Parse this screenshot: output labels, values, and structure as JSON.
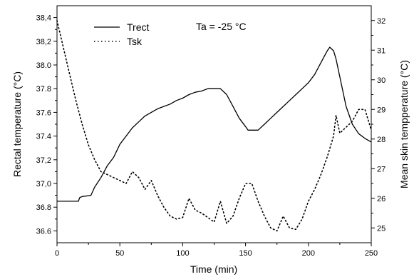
{
  "chart_data": {
    "type": "line",
    "annotation": "Ta = -25 °C",
    "xlabel": "Time (min)",
    "ylabel_left": "Rectal temperature (°C)",
    "ylabel_right": "Mean skin tempperature (°C)",
    "xlim": [
      0,
      250
    ],
    "ylim_left": [
      36.5,
      38.5
    ],
    "ylim_right": [
      24.5,
      32.5
    ],
    "x_ticks": [
      "0",
      "50",
      "100",
      "150",
      "200",
      "250"
    ],
    "y_left_ticks": [
      "36.6",
      "36.8",
      "37,0",
      "37,2",
      "37.4",
      "37.6",
      "37.8",
      "38.0",
      "38,2",
      "38,4"
    ],
    "y_right_ticks": [
      "25",
      "26",
      "27",
      "28",
      "29",
      "30",
      "31",
      "32"
    ],
    "legend_position": "top-left",
    "grid": false,
    "series": [
      {
        "name": "Trect",
        "axis": "left",
        "style": "solid",
        "color": "#000000",
        "x": [
          0,
          17,
          18,
          20,
          27,
          30,
          35,
          40,
          45,
          50,
          55,
          60,
          65,
          70,
          75,
          80,
          85,
          90,
          95,
          100,
          105,
          110,
          115,
          120,
          125,
          130,
          135,
          140,
          145,
          150,
          152,
          155,
          160,
          165,
          170,
          175,
          180,
          185,
          190,
          195,
          200,
          205,
          210,
          215,
          217,
          220,
          222,
          225,
          230,
          235,
          240,
          245,
          250
        ],
        "y": [
          36.85,
          36.85,
          36.88,
          36.89,
          36.9,
          36.97,
          37.05,
          37.15,
          37.22,
          37.33,
          37.4,
          37.47,
          37.52,
          37.57,
          37.6,
          37.63,
          37.65,
          37.67,
          37.7,
          37.72,
          37.75,
          37.77,
          37.78,
          37.8,
          37.8,
          37.8,
          37.75,
          37.65,
          37.55,
          37.48,
          37.45,
          37.45,
          37.45,
          37.5,
          37.55,
          37.6,
          37.65,
          37.7,
          37.75,
          37.8,
          37.85,
          37.92,
          38.02,
          38.12,
          38.15,
          38.12,
          38.05,
          37.9,
          37.65,
          37.5,
          37.42,
          37.38,
          37.35
        ]
      },
      {
        "name": "Tsk",
        "axis": "right",
        "style": "dotted",
        "color": "#000000",
        "x": [
          0,
          5,
          10,
          15,
          20,
          25,
          30,
          35,
          40,
          45,
          50,
          55,
          60,
          65,
          70,
          75,
          80,
          85,
          90,
          95,
          100,
          105,
          110,
          115,
          120,
          125,
          130,
          135,
          140,
          145,
          150,
          155,
          160,
          165,
          170,
          175,
          180,
          185,
          190,
          195,
          200,
          205,
          210,
          215,
          220,
          222,
          225,
          230,
          235,
          240,
          245,
          250
        ],
        "y": [
          32.0,
          31.1,
          30.2,
          29.3,
          28.5,
          27.8,
          27.3,
          26.9,
          26.8,
          26.7,
          26.6,
          26.5,
          26.9,
          26.7,
          26.3,
          26.6,
          26.1,
          25.7,
          25.4,
          25.3,
          25.35,
          26.0,
          25.6,
          25.5,
          25.35,
          25.2,
          25.9,
          25.15,
          25.4,
          26.0,
          26.5,
          26.5,
          25.9,
          25.4,
          25.0,
          24.9,
          25.4,
          25.0,
          24.95,
          25.3,
          25.9,
          26.3,
          26.8,
          27.4,
          28.1,
          28.8,
          28.2,
          28.4,
          28.6,
          29.0,
          29.0,
          28.3
        ]
      }
    ]
  }
}
